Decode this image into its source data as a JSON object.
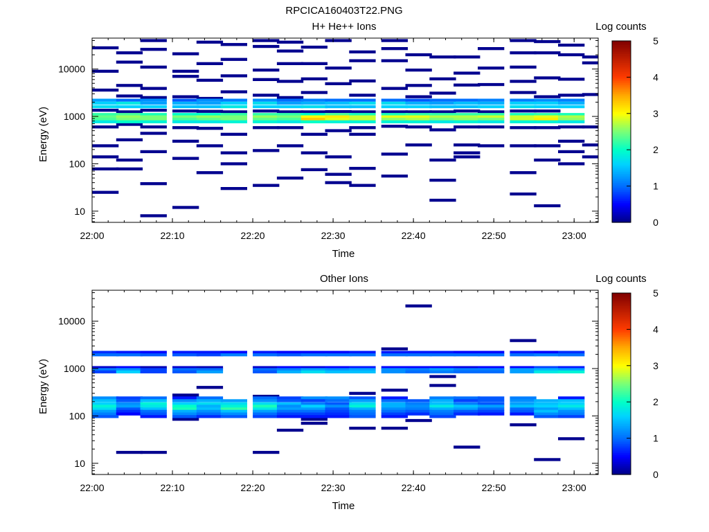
{
  "page_title": "RPCICA160403T22.PNG",
  "chart_data": [
    {
      "type": "heatmap",
      "title": "H+ He++ Ions",
      "xlabel": "Time",
      "ylabel": "Energy (eV)",
      "x_ticks": [
        "22:00",
        "22:10",
        "22:20",
        "22:30",
        "22:40",
        "22:50",
        "23:00"
      ],
      "x_range": [
        "22:00",
        "23:03"
      ],
      "y_ticks": [
        "10",
        "100",
        "1000",
        "10000"
      ],
      "ylim": [
        5.8,
        45000
      ],
      "y_scale": "log",
      "colorbar": {
        "label": "Log counts",
        "ticks": [
          "0",
          "1",
          "2",
          "3",
          "4",
          "5"
        ],
        "range": [
          0,
          5
        ],
        "colormap": "rainbow"
      },
      "time_bins": [
        "22:00",
        "22:03",
        "22:06",
        "22:10",
        "22:13",
        "22:16",
        "22:20",
        "22:23",
        "22:26",
        "22:29",
        "22:32",
        "22:36",
        "22:39",
        "22:42",
        "22:45",
        "22:48",
        "22:52",
        "22:55",
        "22:58"
      ],
      "energy_bands": [
        {
          "energy": 2200,
          "levels": [
            1.3,
            1.0,
            1.2,
            0.9,
            1.2,
            1.1,
            1.2,
            1.0,
            1.1,
            1.0,
            1.0,
            1.0,
            0.9,
            1.0,
            1.0,
            1.1,
            1.1,
            1.2,
            1.1
          ]
        },
        {
          "energy": 1900,
          "levels": [
            1.6,
            1.8,
            1.3,
            1.4,
            1.3,
            1.6,
            1.7,
            1.3,
            1.4,
            1.5,
            1.7,
            1.7,
            1.4,
            1.3,
            1.5,
            1.4,
            1.6,
            1.6,
            1.4
          ]
        },
        {
          "energy": 1600,
          "levels": [
            1.7,
            1.6,
            1.6,
            1.5,
            1.5,
            1.8,
            1.6,
            1.6,
            1.7,
            1.5,
            1.5,
            1.6,
            1.6,
            1.5,
            1.5,
            1.6,
            1.7,
            1.6,
            1.6
          ]
        },
        {
          "energy": 1100,
          "levels": [
            2.2,
            2.3,
            2.1,
            2.0,
            2.0,
            2.2,
            2.2,
            2.2,
            2.0,
            2.3,
            2.1,
            2.1,
            2.2,
            2.2,
            2.2,
            2.2,
            2.1,
            2.2,
            2.1
          ]
        },
        {
          "energy": 980,
          "levels": [
            2.4,
            2.6,
            2.5,
            2.5,
            2.6,
            2.5,
            2.6,
            2.5,
            3.0,
            3.1,
            2.8,
            2.9,
            2.9,
            2.7,
            2.7,
            2.8,
            2.8,
            2.9,
            2.7
          ]
        },
        {
          "energy": 870,
          "levels": [
            2.3,
            2.5,
            2.5,
            2.3,
            2.4,
            2.5,
            2.4,
            2.3,
            3.3,
            2.9,
            2.8,
            2.6,
            2.7,
            2.5,
            2.6,
            2.5,
            2.8,
            3.1,
            2.6
          ]
        },
        {
          "energy": 770,
          "levels": [
            1.8,
            2.0,
            1.9,
            1.8,
            1.8,
            1.9,
            1.9,
            1.8,
            2.0,
            1.9,
            1.9,
            1.9,
            1.9,
            1.8,
            1.9,
            1.8,
            1.9,
            1.9,
            1.8
          ]
        }
      ],
      "sparse_cells": [
        {
          "time": "22:00",
          "energies": [
            28000,
            9000,
            3600,
            1350,
            600,
            240,
            140,
            78,
            25
          ]
        },
        {
          "time": "22:03",
          "energies": [
            22000,
            14000,
            4500,
            2700,
            1250,
            680,
            320,
            120,
            78
          ]
        },
        {
          "time": "22:06",
          "energies": [
            40000,
            26000,
            11000,
            3900,
            2500,
            1350,
            600,
            440,
            180,
            38,
            8
          ]
        },
        {
          "time": "22:10",
          "energies": [
            21000,
            9000,
            7000,
            2600,
            1300,
            580,
            300,
            130,
            12
          ]
        },
        {
          "time": "22:13",
          "energies": [
            37000,
            13000,
            5800,
            2400,
            1280,
            560,
            240,
            65
          ]
        },
        {
          "time": "22:16",
          "energies": [
            33000,
            16000,
            7200,
            3300,
            1250,
            420,
            170,
            100,
            30
          ]
        },
        {
          "time": "22:20",
          "energies": [
            40000,
            30000,
            9500,
            6000,
            2800,
            1300,
            580,
            190,
            35
          ]
        },
        {
          "time": "22:23",
          "energies": [
            37000,
            24000,
            13000,
            5500,
            2500,
            1250,
            580,
            240,
            50
          ]
        },
        {
          "time": "22:26",
          "energies": [
            29000,
            13000,
            6200,
            3200,
            1250,
            420,
            170,
            75
          ]
        },
        {
          "time": "22:29",
          "energies": [
            40000,
            10500,
            4900,
            1260,
            500,
            140,
            60,
            40
          ]
        },
        {
          "time": "22:32",
          "energies": [
            23000,
            15000,
            5600,
            2800,
            1250,
            580,
            420,
            80,
            35
          ]
        },
        {
          "time": "22:36",
          "energies": [
            40000,
            27000,
            15000,
            3900,
            1250,
            620,
            160,
            55
          ]
        },
        {
          "time": "22:39",
          "energies": [
            20000,
            9500,
            4500,
            2600,
            1250,
            600,
            250
          ]
        },
        {
          "time": "22:42",
          "energies": [
            18000,
            6200,
            3100,
            1250,
            520,
            120,
            45,
            17
          ]
        },
        {
          "time": "22:45",
          "energies": [
            18000,
            8200,
            4600,
            1300,
            600,
            250,
            170,
            140
          ]
        },
        {
          "time": "22:48",
          "energies": [
            27000,
            10500,
            4700,
            1250,
            600,
            240
          ]
        },
        {
          "time": "22:52",
          "energies": [
            40000,
            22000,
            11000,
            5500,
            3200,
            1300,
            580,
            240,
            65,
            23
          ]
        },
        {
          "time": "22:55",
          "energies": [
            38000,
            22000,
            6500,
            2600,
            1300,
            580,
            240,
            120,
            13
          ]
        },
        {
          "time": "22:58",
          "energies": [
            32000,
            20000,
            6100,
            2800,
            600,
            300,
            180,
            100
          ]
        },
        {
          "time": "23:01",
          "energies": [
            18000,
            13500,
            2900,
            600,
            250,
            140
          ]
        }
      ]
    },
    {
      "type": "heatmap",
      "title": "Other Ions",
      "xlabel": "Time",
      "ylabel": "Energy (eV)",
      "x_ticks": [
        "22:00",
        "22:10",
        "22:20",
        "22:30",
        "22:40",
        "22:50",
        "23:00"
      ],
      "x_range": [
        "22:00",
        "23:03"
      ],
      "y_ticks": [
        "10",
        "100",
        "1000",
        "10000"
      ],
      "ylim": [
        5.8,
        45000
      ],
      "y_scale": "log",
      "colorbar": {
        "label": "Log counts",
        "ticks": [
          "0",
          "1",
          "2",
          "3",
          "4",
          "5"
        ],
        "range": [
          0,
          5
        ],
        "colormap": "rainbow"
      },
      "time_bins": [
        "22:00",
        "22:03",
        "22:06",
        "22:10",
        "22:13",
        "22:16",
        "22:20",
        "22:23",
        "22:26",
        "22:29",
        "22:32",
        "22:36",
        "22:39",
        "22:42",
        "22:45",
        "22:48",
        "22:52",
        "22:55",
        "22:58"
      ],
      "energy_bands": [
        {
          "energy": 2200,
          "levels": [
            0.7,
            0.6,
            0.5,
            0.6,
            0.6,
            0.5,
            0.6,
            0.5,
            0.5,
            0.5,
            0.6,
            0.6,
            0.6,
            0.6,
            0.5,
            0.5,
            0.6,
            0.5,
            0.7
          ]
        },
        {
          "energy": 1950,
          "levels": [
            1.0,
            1.0,
            0.9,
            0.9,
            0.8,
            1.1,
            1.0,
            0.9,
            1.0,
            1.0,
            1.0,
            1.0,
            1.0,
            1.0,
            1.0,
            1.0,
            1.0,
            1.1,
            1.0
          ]
        },
        {
          "energy": 1050,
          "levels": [
            0.3,
            0.5,
            0.2,
            0.3,
            0.2,
            0.0,
            0.3,
            0.5,
            0.4,
            0.5,
            0.6,
            0.5,
            0.5,
            0.5,
            0.4,
            0.5,
            0.5,
            0.8,
            0.6
          ]
        },
        {
          "energy": 950,
          "levels": [
            1.1,
            1.2,
            0.8,
            1.0,
            1.0,
            0.0,
            1.0,
            1.1,
            1.3,
            1.2,
            1.3,
            1.2,
            1.1,
            1.3,
            1.1,
            1.1,
            1.3,
            1.4,
            1.3
          ]
        },
        {
          "energy": 850,
          "levels": [
            0.8,
            1.6,
            0.8,
            0.9,
            1.3,
            0.0,
            0.9,
            1.4,
            1.7,
            1.5,
            1.5,
            1.2,
            1.0,
            1.1,
            1.0,
            1.0,
            1.3,
            1.8,
            1.9
          ]
        },
        {
          "energy": 240,
          "levels": [
            1.2,
            0.8,
            1.0,
            0.6,
            1.0,
            0.0,
            1.0,
            0.8,
            1.2,
            1.2,
            0.9,
            0.6,
            0.0,
            1.1,
            1.0,
            0.9,
            1.1,
            0.0,
            0.6
          ]
        },
        {
          "energy": 210,
          "levels": [
            1.5,
            0.9,
            1.5,
            1.2,
            1.4,
            1.3,
            1.2,
            0.9,
            0.8,
            1.0,
            1.3,
            1.0,
            0.9,
            1.4,
            0.8,
            0.9,
            1.2,
            1.4,
            1.5
          ]
        },
        {
          "energy": 180,
          "levels": [
            1.6,
            1.2,
            1.9,
            1.6,
            1.7,
            1.7,
            1.7,
            1.5,
            1.1,
            0.9,
            1.7,
            1.4,
            1.1,
            1.5,
            1.1,
            0.9,
            1.3,
            1.5,
            1.6
          ]
        },
        {
          "energy": 160,
          "levels": [
            1.9,
            1.3,
            1.8,
            2.0,
            1.4,
            1.9,
            2.1,
            1.2,
            1.6,
            1.2,
            1.9,
            1.4,
            1.2,
            1.8,
            1.5,
            1.3,
            1.5,
            1.6,
            1.8
          ]
        },
        {
          "energy": 140,
          "levels": [
            1.7,
            0.9,
            1.5,
            2.1,
            1.5,
            2.2,
            1.8,
            1.3,
            1.3,
            0.9,
            1.4,
            1.2,
            1.1,
            1.4,
            1.3,
            1.0,
            1.0,
            1.3,
            1.5
          ]
        },
        {
          "energy": 125,
          "levels": [
            1.3,
            0.7,
            1.0,
            1.4,
            1.2,
            1.5,
            1.3,
            1.0,
            1.0,
            0.8,
            1.1,
            1.0,
            0.9,
            1.1,
            0.9,
            0.8,
            0.9,
            1.5,
            1.2
          ]
        },
        {
          "energy": 110,
          "levels": [
            1.1,
            0.5,
            0.9,
            1.2,
            1.0,
            1.2,
            1.0,
            0.8,
            0.8,
            0.7,
            1.0,
            0.8,
            0.7,
            1.0,
            0.7,
            0.6,
            0.6,
            1.2,
            1.1
          ]
        },
        {
          "energy": 97,
          "levels": [
            0.9,
            0.0,
            0.6,
            0.9,
            0.7,
            0.9,
            0.8,
            0.6,
            0.6,
            0.6,
            0.9,
            0.6,
            0.0,
            0.8,
            0.0,
            0.0,
            0.0,
            0.9,
            0.8
          ]
        }
      ],
      "sparse_cells": [
        {
          "time": "22:03",
          "energies": [
            230,
            17
          ]
        },
        {
          "time": "22:06",
          "energies": [
            17
          ]
        },
        {
          "time": "22:10",
          "energies": [
            275,
            85
          ]
        },
        {
          "time": "22:13",
          "energies": [
            400
          ]
        },
        {
          "time": "22:20",
          "energies": [
            260,
            17
          ]
        },
        {
          "time": "22:23",
          "energies": [
            50
          ]
        },
        {
          "time": "22:26",
          "energies": [
            85,
            70
          ]
        },
        {
          "time": "22:32",
          "energies": [
            300,
            55
          ]
        },
        {
          "time": "22:36",
          "energies": [
            2600,
            350,
            55
          ]
        },
        {
          "time": "22:39",
          "energies": [
            21000,
            80
          ]
        },
        {
          "time": "22:42",
          "energies": [
            680,
            440
          ]
        },
        {
          "time": "22:45",
          "energies": [
            22
          ]
        },
        {
          "time": "22:52",
          "energies": [
            3900,
            65
          ]
        },
        {
          "time": "22:55",
          "energies": [
            12
          ]
        },
        {
          "time": "22:58",
          "energies": [
            33
          ]
        }
      ]
    }
  ]
}
